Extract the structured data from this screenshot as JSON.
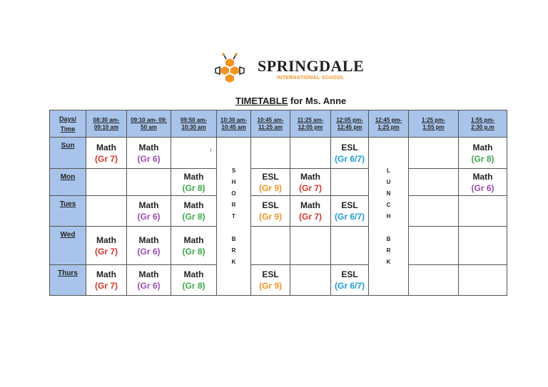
{
  "school": {
    "name": "SPRINGDALE",
    "subtitle": "INTERNATIONAL SCHOOL"
  },
  "title": {
    "prefix": "TIMETABLE",
    "rest": " for Ms. Anne"
  },
  "colors": {
    "header_bg": "#a9c4ea",
    "gr6_7": "#1a9ed9",
    "gr9": "#f29423",
    "gr8": "#3aa84a",
    "gr7": "#d8342c",
    "gr6": "#9a4bb0",
    "logo_orange": "#f29423"
  },
  "header": {
    "corner_line1": "Days/",
    "corner_line2": "Time",
    "times": [
      [
        "08:30 am-",
        "09:10 am"
      ],
      [
        "09:10 am- 09:",
        "50 am"
      ],
      [
        "09:50 am-",
        "10:30 am"
      ],
      [
        "10:30 am-",
        "10:45 am"
      ],
      [
        "10:45 am-",
        "11:25 am"
      ],
      [
        "11:25 am-",
        "12:05 pm"
      ],
      [
        "12:05 pm-",
        "12:45 pm"
      ],
      [
        "12:45 pm-",
        "1:25 pm"
      ],
      [
        "1:25 pm-",
        "1:55 pm"
      ],
      [
        "1:55 pm-",
        "2:30 p.m"
      ]
    ]
  },
  "short_break": [
    "S",
    "H",
    "O",
    "R",
    "T",
    "",
    "B",
    "R",
    "K"
  ],
  "lunch_break": [
    "L",
    "U",
    "N",
    "C",
    "H",
    "",
    "B",
    "R",
    "K"
  ],
  "stray_mark": "ı",
  "days": [
    {
      "name": "Sun",
      "cells": [
        [
          "Math",
          "(Gr 7)",
          "gr7"
        ],
        [
          "Math",
          "(Gr 6)",
          "gr6"
        ],
        null,
        null,
        null,
        [
          "ESL",
          "(Gr 6/7)",
          "gr6_7"
        ],
        null,
        [
          "Math",
          "(Gr 8)",
          "gr8"
        ]
      ]
    },
    {
      "name": "Mon",
      "cells": [
        null,
        null,
        [
          "Math",
          "(Gr 8)",
          "gr8"
        ],
        [
          "ESL",
          "(Gr 9)",
          "gr9"
        ],
        [
          "Math",
          "(Gr 7)",
          "gr7"
        ],
        null,
        null,
        [
          "Math",
          "(Gr 6)",
          "gr6"
        ]
      ]
    },
    {
      "name": "Tues",
      "cells": [
        null,
        [
          "Math",
          "(Gr 6)",
          "gr6"
        ],
        [
          "Math",
          "(Gr 8)",
          "gr8"
        ],
        [
          "ESL",
          "(Gr 9)",
          "gr9"
        ],
        [
          "Math",
          "(Gr 7)",
          "gr7"
        ],
        [
          "ESL",
          "(Gr 6/7)",
          "gr6_7"
        ],
        null,
        null
      ]
    },
    {
      "name": "Wed",
      "cells": [
        [
          "Math",
          "(Gr 7)",
          "gr7"
        ],
        [
          "Math",
          "(Gr 6)",
          "gr6"
        ],
        [
          "Math",
          "(Gr 8)",
          "gr8"
        ],
        null,
        null,
        null,
        null,
        null
      ]
    },
    {
      "name": "Thurs",
      "cells": [
        [
          "Math",
          "(Gr 7)",
          "gr7"
        ],
        [
          "Math",
          "(Gr 6)",
          "gr6"
        ],
        [
          "Math",
          "(Gr 8)",
          "gr8"
        ],
        [
          "ESL",
          "(Gr 9)",
          "gr9"
        ],
        null,
        [
          "ESL",
          "(Gr 6/7)",
          "gr6_7"
        ],
        null,
        null
      ]
    }
  ]
}
